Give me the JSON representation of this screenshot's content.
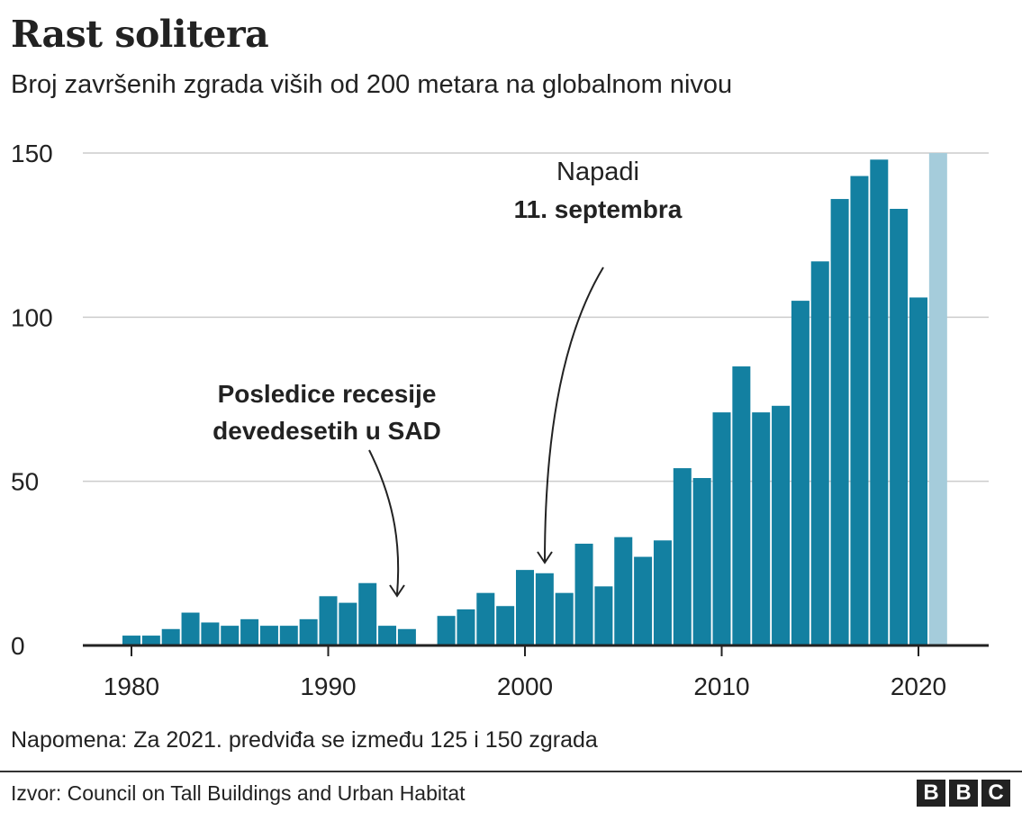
{
  "title": "Rast solitera",
  "subtitle": "Broj završenih zgrada viših od 200 metara na globalnom nivou",
  "note": "Napomena: Za 2021. predviđa se između 125 i 150 zgrada",
  "source": "Izvor:  Council on Tall Buildings and Urban Habitat",
  "logo": "BBC",
  "chart_data": {
    "type": "bar",
    "title": "Rast solitera",
    "subtitle": "Broj završenih zgrada viših od 200 metara na globalnom nivou",
    "xlabel": "",
    "ylabel": "",
    "ylim": [
      0,
      150
    ],
    "yticks": [
      "0",
      "50",
      "100",
      "150"
    ],
    "xticks": [
      "1980",
      "1990",
      "2000",
      "2010",
      "2020"
    ],
    "grid": true,
    "x": [
      1980,
      1981,
      1982,
      1983,
      1984,
      1985,
      1986,
      1987,
      1988,
      1989,
      1990,
      1991,
      1992,
      1993,
      1994,
      1995,
      1996,
      1997,
      1998,
      1999,
      2000,
      2001,
      2002,
      2003,
      2004,
      2005,
      2006,
      2007,
      2008,
      2009,
      2010,
      2011,
      2012,
      2013,
      2014,
      2015,
      2016,
      2017,
      2018,
      2019,
      2020,
      2021
    ],
    "values": [
      3,
      3,
      5,
      10,
      7,
      6,
      8,
      6,
      6,
      8,
      15,
      13,
      19,
      6,
      5,
      0,
      9,
      11,
      16,
      12,
      23,
      22,
      16,
      31,
      18,
      33,
      27,
      32,
      54,
      51,
      71,
      85,
      71,
      73,
      105,
      117,
      136,
      143,
      148,
      133,
      106,
      150
    ],
    "projected_year": 2021,
    "colors": {
      "bar": "#1380A1",
      "projected": "#A5CCDB"
    },
    "annotations": [
      {
        "lines": [
          "Posledice recesije",
          "devedesetih u SAD"
        ],
        "year": 1993.5
      },
      {
        "lines": [
          "Napadi",
          "11. septembra"
        ],
        "year": 2001
      }
    ]
  }
}
